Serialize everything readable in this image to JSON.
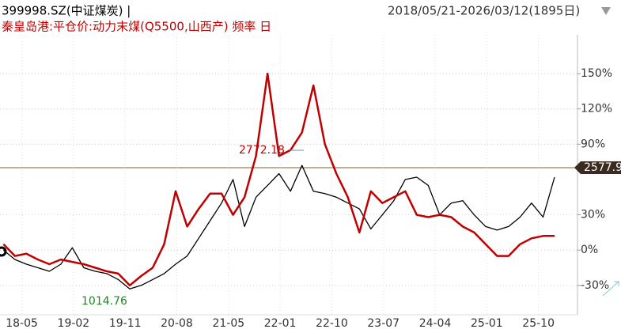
{
  "header": {
    "symbol": "399998.SZ(中证煤炭) |",
    "range": "2018/05/21-2026/03/12(1895日)",
    "indicator": "秦皇岛港:平仓价:动力末煤(Q5500,山西产) 频率 日"
  },
  "chart_data": {
    "type": "line",
    "series": [
      {
        "name": "399998.SZ(中证煤炭)",
        "color": "#000000",
        "values": [
          0,
          -8,
          -12,
          -15,
          -18,
          -12,
          2,
          -15,
          -18,
          -20,
          -25,
          -33,
          -30,
          -25,
          -20,
          -12,
          -5,
          10,
          25,
          40,
          60,
          20,
          45,
          55,
          65,
          50,
          72,
          50,
          48,
          45,
          40,
          35,
          18,
          30,
          42,
          60,
          62,
          55,
          30,
          40,
          42,
          30,
          20,
          17,
          20,
          28,
          40,
          28,
          62
        ]
      },
      {
        "name": "秦皇岛港:平仓价:动力末煤(Q5500,山西产)",
        "color": "#c00000",
        "values": [
          5,
          -5,
          -3,
          -8,
          -12,
          -8,
          -10,
          -12,
          -15,
          -18,
          -20,
          -30,
          -22,
          -15,
          5,
          50,
          20,
          35,
          48,
          48,
          30,
          45,
          80,
          150,
          80,
          85,
          100,
          140,
          90,
          65,
          45,
          15,
          50,
          40,
          45,
          50,
          30,
          28,
          30,
          28,
          20,
          15,
          5,
          -5,
          -5,
          5,
          10,
          12,
          12
        ]
      }
    ],
    "xlim": [
      -0.3,
      50
    ],
    "xticks": [
      {
        "value": 1.6,
        "label": "18-05"
      },
      {
        "value": 6.1,
        "label": "19-02"
      },
      {
        "value": 10.6,
        "label": "19-11"
      },
      {
        "value": 15.1,
        "label": "20-08"
      },
      {
        "value": 19.6,
        "label": "21-05"
      },
      {
        "value": 24.1,
        "label": "22-01"
      },
      {
        "value": 28.6,
        "label": "22-10"
      },
      {
        "value": 33.1,
        "label": "23-07"
      },
      {
        "value": 37.6,
        "label": "24-04"
      },
      {
        "value": 42.1,
        "label": "25-01"
      },
      {
        "value": 46.6,
        "label": "25-10"
      }
    ],
    "ylim": [
      -55,
      183
    ],
    "yticks": [
      {
        "value": -30,
        "label": "-30%"
      },
      {
        "value": 0,
        "label": "0%"
      },
      {
        "value": 30,
        "label": "30%"
      },
      {
        "value": 90,
        "label": "90%"
      },
      {
        "value": 120,
        "label": "120%"
      },
      {
        "value": 150,
        "label": "150%"
      }
    ],
    "annotations": {
      "high": "2772.18",
      "low": "1014.76",
      "last": "2577.9"
    },
    "grid": true
  }
}
